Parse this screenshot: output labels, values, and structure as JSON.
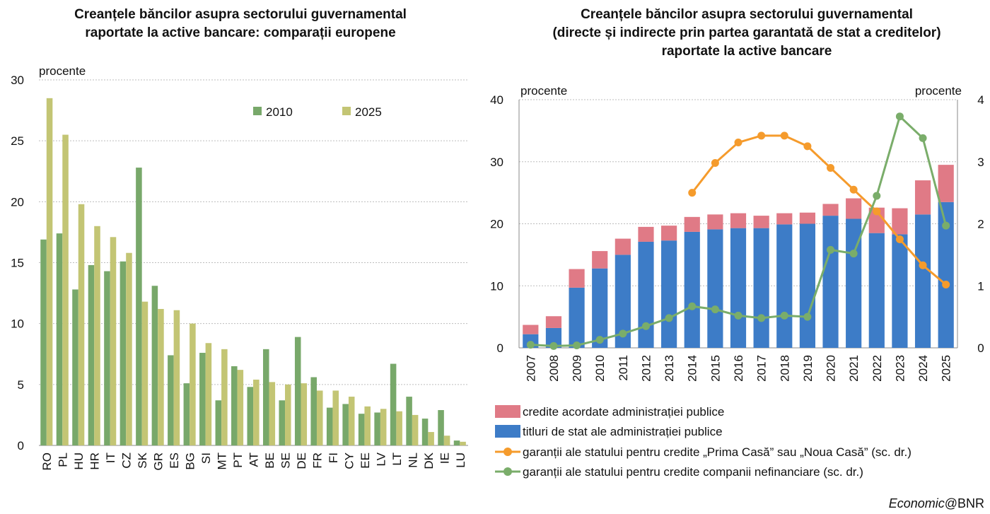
{
  "credit": {
    "italic": "Economic",
    "rest": "@BNR"
  },
  "colors": {
    "green_bar": "#78a86a",
    "yellow_bar": "#c3c574",
    "blue_bar": "#3d7cc7",
    "red_bar": "#e07a86",
    "orange_line": "#f59b2c",
    "green_line": "#7aad6a"
  },
  "chart_data": [
    {
      "type": "bar",
      "title_lines": [
        "Creanțele băncilor asupra sectorului guvernamental",
        "raportate la active bancare: comparații europene"
      ],
      "ylabel": "procente",
      "ylim": [
        0,
        30
      ],
      "yticks": [
        0,
        5,
        10,
        15,
        20,
        25,
        30
      ],
      "grid": true,
      "legend_position": "top-right",
      "categories": [
        "RO",
        "PL",
        "HU",
        "HR",
        "IT",
        "CZ",
        "SK",
        "GR",
        "ES",
        "BG",
        "SI",
        "MT",
        "PT",
        "AT",
        "BE",
        "SE",
        "DE",
        "FR",
        "FI",
        "CY",
        "EE",
        "LV",
        "LT",
        "NL",
        "DK",
        "IE",
        "LU"
      ],
      "series": [
        {
          "name": "2010",
          "values": [
            16.9,
            17.4,
            12.8,
            14.8,
            14.3,
            15.1,
            22.8,
            13.1,
            7.4,
            5.1,
            7.6,
            3.7,
            6.5,
            4.8,
            7.9,
            3.7,
            8.9,
            5.6,
            3.1,
            3.4,
            2.6,
            2.7,
            6.7,
            4.0,
            2.2,
            2.9,
            0.4
          ]
        },
        {
          "name": "2025",
          "values": [
            28.5,
            25.5,
            19.8,
            18.0,
            17.1,
            15.8,
            11.8,
            11.2,
            11.1,
            10.0,
            8.4,
            7.9,
            6.2,
            5.4,
            5.2,
            5.0,
            5.1,
            4.5,
            4.5,
            4.0,
            3.2,
            3.0,
            2.8,
            2.5,
            1.1,
            0.8,
            0.3
          ]
        }
      ]
    },
    {
      "type": "bar+line",
      "title_lines": [
        "Creanțele băncilor asupra sectorului guvernamental",
        "(directe și indirecte prin partea garantată de stat a creditelor)",
        "raportate la active bancare"
      ],
      "ylabel_left": "procente",
      "ylabel_right": "procente",
      "ylim_left": [
        0,
        40
      ],
      "yticks_left": [
        0,
        10,
        20,
        30,
        40
      ],
      "ylim_right": [
        0,
        4
      ],
      "yticks_right": [
        0,
        1,
        2,
        3,
        4
      ],
      "grid": true,
      "legend_position": "bottom",
      "categories": [
        "2007",
        "2008",
        "2009",
        "2010",
        "2011",
        "2012",
        "2013",
        "2014",
        "2015",
        "2016",
        "2017",
        "2018",
        "2019",
        "2020",
        "2021",
        "2022",
        "2023",
        "2024",
        "2025"
      ],
      "stacked_series": [
        {
          "name": "titluri de stat ale administrației publice",
          "values": [
            2.2,
            3.2,
            9.7,
            12.8,
            15.0,
            17.1,
            17.3,
            18.7,
            19.1,
            19.3,
            19.3,
            19.9,
            20.0,
            21.3,
            20.8,
            18.5,
            18.3,
            21.5,
            23.5
          ]
        },
        {
          "name": "credite acordate administrației publice",
          "values": [
            1.5,
            1.9,
            3.0,
            2.8,
            2.6,
            2.4,
            2.4,
            2.4,
            2.4,
            2.4,
            2.0,
            1.8,
            1.8,
            1.9,
            3.3,
            4.1,
            4.2,
            5.5,
            6.0
          ]
        }
      ],
      "line_series": [
        {
          "name": "garanții ale statului pentru credite „Prima Casă” sau „Noua Casă” (sc. dr.)",
          "axis": "right",
          "values": [
            null,
            null,
            null,
            null,
            null,
            null,
            null,
            2.5,
            2.98,
            3.31,
            3.42,
            3.42,
            3.25,
            2.9,
            2.55,
            2.2,
            1.75,
            1.33,
            1.02
          ]
        },
        {
          "name": "garanții ale statului pentru credite companii nefinanciare (sc. dr.)",
          "axis": "right",
          "values": [
            0.05,
            0.03,
            0.04,
            0.13,
            0.23,
            0.35,
            0.48,
            0.67,
            0.62,
            0.52,
            0.48,
            0.52,
            0.5,
            1.58,
            1.52,
            2.45,
            3.73,
            3.38,
            1.97
          ]
        }
      ],
      "legend_order": [
        "credite acordate administrației publice",
        "titluri de stat ale administrației publice",
        "garanții ale statului pentru credite „Prima Casă” sau „Noua Casă” (sc. dr.)",
        "garanții ale statului pentru credite companii nefinanciare (sc. dr.)"
      ]
    }
  ]
}
